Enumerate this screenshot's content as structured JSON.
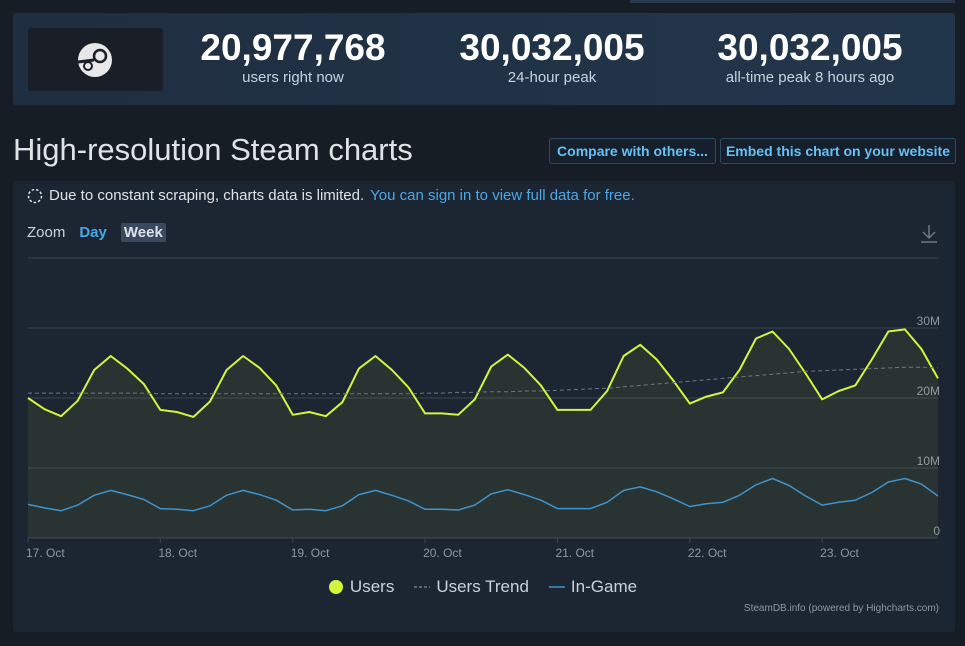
{
  "header": {
    "stats": [
      {
        "value": "20,977,768",
        "caption": "users right now"
      },
      {
        "value": "30,032,005",
        "caption": "24-hour peak"
      },
      {
        "value": "30,032,005",
        "caption": "all-time peak 8 hours ago"
      }
    ]
  },
  "chart_header": {
    "title": "High-resolution Steam charts",
    "buttons": [
      "Compare with others...",
      "Embed this chart on your website"
    ]
  },
  "notice": {
    "text": "Due to constant scraping, charts data is limited.",
    "link": "You can sign in to view full data for free."
  },
  "zoom": {
    "label": "Zoom",
    "options": [
      "Day",
      "Week"
    ]
  },
  "credits": "SteamDB.info (powered by Highcharts.com)",
  "chart_data": {
    "type": "line",
    "categories": [
      "17. Oct",
      null,
      null,
      null,
      null,
      null,
      null,
      null,
      "18. Oct",
      null,
      null,
      null,
      null,
      null,
      null,
      null,
      "19. Oct",
      null,
      null,
      null,
      null,
      null,
      null,
      null,
      "20. Oct",
      null,
      null,
      null,
      null,
      null,
      null,
      null,
      "21. Oct",
      null,
      null,
      null,
      null,
      null,
      null,
      null,
      "22. Oct",
      null,
      null,
      null,
      null,
      null,
      null,
      null,
      "23. Oct",
      null,
      null,
      null,
      null,
      null,
      null,
      null
    ],
    "series": [
      {
        "name": "Users",
        "color": "#d4f53c",
        "area": true,
        "marker": "circle",
        "values": [
          20000000,
          18400000,
          17400000,
          19600000,
          24000000,
          26000000,
          24200000,
          22000000,
          18300000,
          18000000,
          17300000,
          19500000,
          24000000,
          26000000,
          24300000,
          21800000,
          17600000,
          18000000,
          17400000,
          19400000,
          24200000,
          26000000,
          24000000,
          21500000,
          17800000,
          17800000,
          17600000,
          19800000,
          24500000,
          26200000,
          24300000,
          21800000,
          18300000,
          18300000,
          18300000,
          21000000,
          26000000,
          27600000,
          25500000,
          22500000,
          19200000,
          20200000,
          20800000,
          24000000,
          28500000,
          29500000,
          27000000,
          23500000,
          19800000,
          21000000,
          21800000,
          25500000,
          29500000,
          29800000,
          27000000,
          22800000
        ]
      },
      {
        "name": "Users Trend",
        "color": "#6b7885",
        "dashed": true,
        "values": [
          20700000,
          20700000,
          20700000,
          20700000,
          20700000,
          20700000,
          20700000,
          20700000,
          20600000,
          20600000,
          20600000,
          20600000,
          20600000,
          20600000,
          20600000,
          20600000,
          20600000,
          20600000,
          20600000,
          20600000,
          20600000,
          20600000,
          20600000,
          20600000,
          20700000,
          20700000,
          20800000,
          20800000,
          20900000,
          20900000,
          21000000,
          21000000,
          21100000,
          21200000,
          21300000,
          21400000,
          21600000,
          21800000,
          22000000,
          22200000,
          22400000,
          22600000,
          22800000,
          23000000,
          23200000,
          23400000,
          23600000,
          23800000,
          23900000,
          24000000,
          24100000,
          24200000,
          24300000,
          24400000,
          24400000,
          24300000
        ]
      },
      {
        "name": "In-Game",
        "color": "#3f93cc",
        "values": [
          4800000,
          4300000,
          3900000,
          4700000,
          6100000,
          6800000,
          6200000,
          5500000,
          4200000,
          4100000,
          3900000,
          4600000,
          6100000,
          6800000,
          6200000,
          5400000,
          4000000,
          4100000,
          3900000,
          4600000,
          6200000,
          6800000,
          6100000,
          5300000,
          4100000,
          4100000,
          4000000,
          4700000,
          6300000,
          6900000,
          6200000,
          5400000,
          4200000,
          4200000,
          4200000,
          5100000,
          6800000,
          7300000,
          6600000,
          5600000,
          4500000,
          4900000,
          5100000,
          6100000,
          7600000,
          8500000,
          7500000,
          6000000,
          4700000,
          5100000,
          5400000,
          6500000,
          8000000,
          8500000,
          7700000,
          6000000
        ]
      }
    ],
    "ylim": [
      0,
      40000000
    ],
    "yticks": [
      0,
      {
        "value": 10000000,
        "label": "10M"
      },
      {
        "value": 20000000,
        "label": "20M"
      },
      {
        "value": 30000000,
        "label": "30M"
      }
    ],
    "grid": true
  }
}
